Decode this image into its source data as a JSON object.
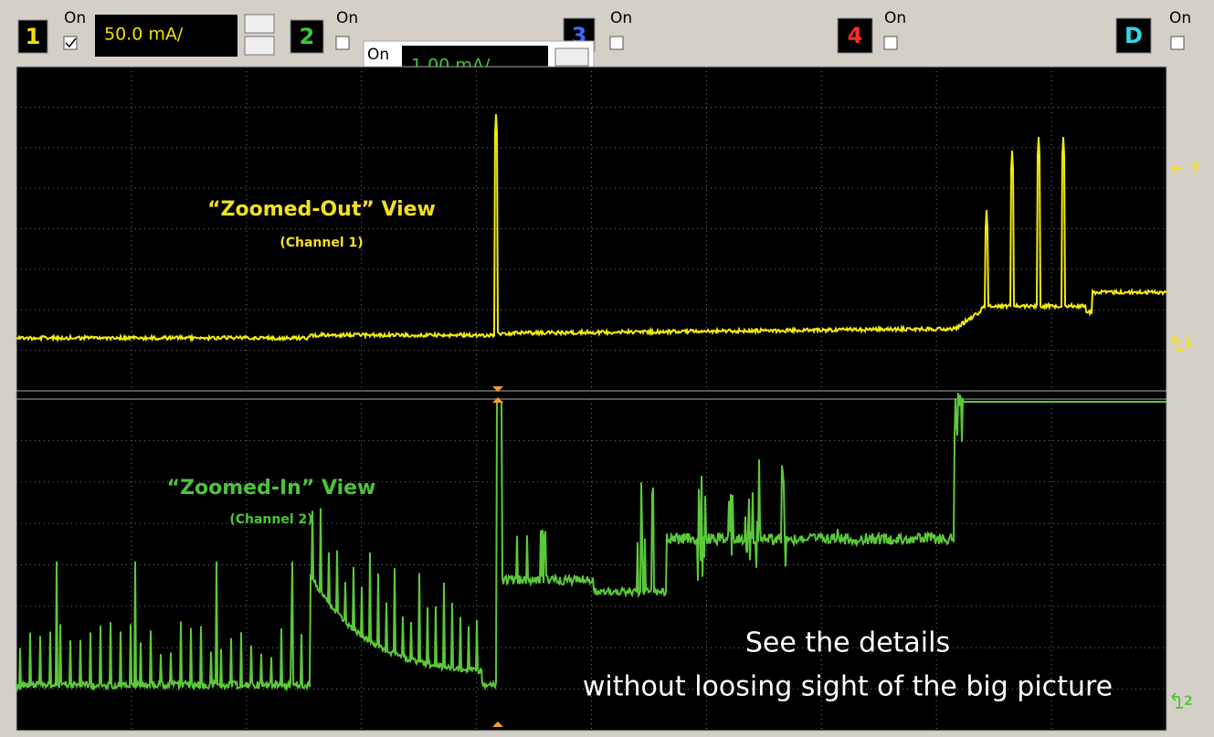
{
  "toolbar": {
    "channels": [
      {
        "label": "1",
        "on": "On",
        "scale": "50.0 mA/"
      },
      {
        "label": "2",
        "on": "On"
      },
      {
        "label": "3",
        "on": "On"
      },
      {
        "label": "4",
        "on": "On"
      },
      {
        "label": "D",
        "on": "On"
      }
    ],
    "popup": {
      "on": "On",
      "scale": "1.00 mA/"
    }
  },
  "panels": [
    {
      "title": "“Zoomed-Out” View",
      "subtitle": "(Channel 1)"
    },
    {
      "title": "“Zoomed-In” View",
      "subtitle": "(Channel 2)"
    }
  ],
  "caption": [
    "See the details",
    "without loosing sight of the big picture"
  ],
  "markers": {
    "trigger": "T",
    "ch1": "1",
    "ch2": "2"
  }
}
